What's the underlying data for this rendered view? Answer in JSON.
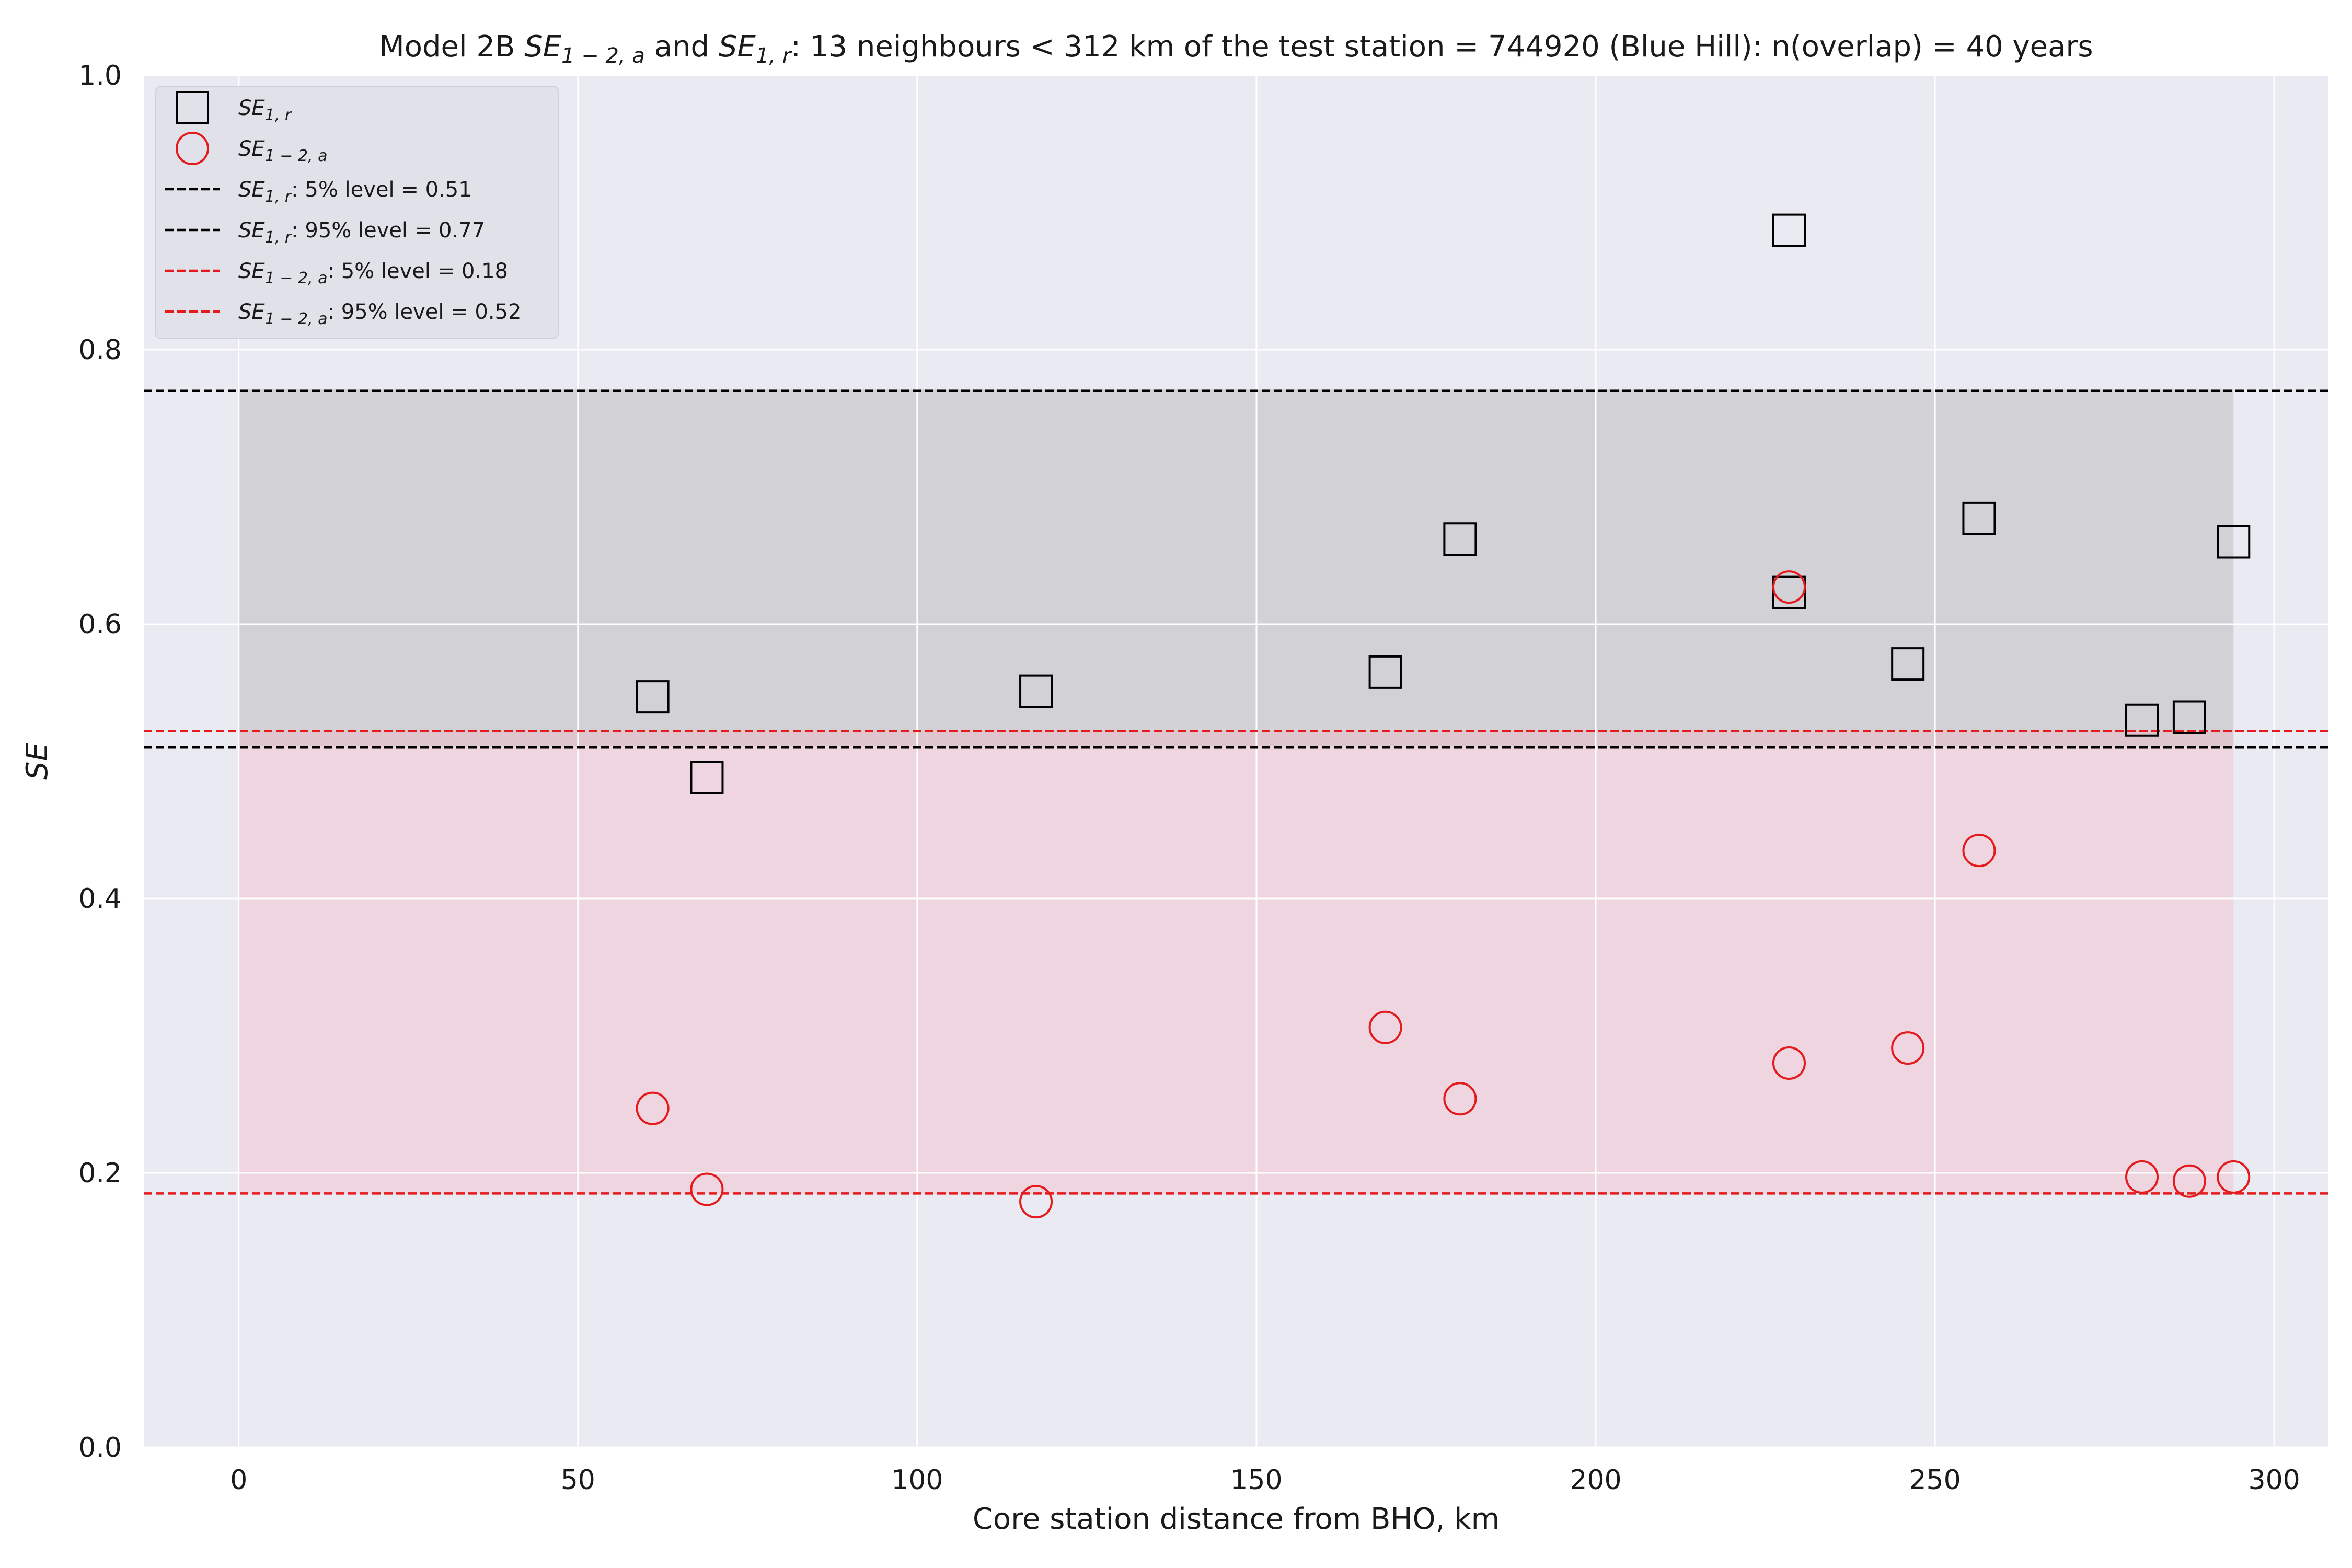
{
  "chart_data": {
    "type": "scatter",
    "title_parts": {
      "prefix": "Model 2B ",
      "se_a": "SE",
      "se_a_sub": "1 − 2, a",
      "middle": " and ",
      "se_r": "SE",
      "se_r_sub": "1, r",
      "suffix": ": 13 neighbours < 312 km of the test station = 744920 (Blue Hill): n(overlap) = 40 years"
    },
    "xlabel": "Core station distance from BHO, km",
    "ylabel": "SE",
    "xlim": [
      -14,
      308
    ],
    "ylim": [
      0.0,
      1.0
    ],
    "xticks": [
      0,
      50,
      100,
      150,
      200,
      250,
      300
    ],
    "yticks": [
      0.0,
      0.2,
      0.4,
      0.6,
      0.8,
      1.0
    ],
    "xtick_labels": [
      "0",
      "50",
      "100",
      "150",
      "200",
      "250",
      "300"
    ],
    "ytick_labels": [
      "0.0",
      "0.2",
      "0.4",
      "0.6",
      "0.8",
      "1.0"
    ],
    "grid": true,
    "legend_position": "top-left",
    "series": [
      {
        "name": "SE_{1,r}",
        "marker": "square",
        "color": "#000000",
        "x": [
          61,
          69,
          117.5,
          169,
          180,
          228.5,
          228.5,
          246,
          256.5,
          280.5,
          287.5,
          294
        ],
        "y": [
          0.547,
          0.488,
          0.551,
          0.565,
          0.662,
          0.887,
          0.623,
          0.571,
          0.677,
          0.53,
          0.532,
          0.66
        ]
      },
      {
        "name": "SE_{1-2,a}",
        "marker": "circle",
        "color": "#e41a1c",
        "x": [
          61,
          69,
          117.5,
          169,
          180,
          228.5,
          228.5,
          246,
          256.5,
          280.5,
          287.5,
          294
        ],
        "y": [
          0.247,
          0.188,
          0.179,
          0.306,
          0.254,
          0.627,
          0.28,
          0.291,
          0.435,
          0.197,
          0.194,
          0.197
        ]
      }
    ],
    "reference_lines": [
      {
        "series": "SE_{1,r}",
        "label": ": 5% level = 0.51",
        "value": 0.51,
        "color": "#000000"
      },
      {
        "series": "SE_{1,r}",
        "label": ": 95% level = 0.77",
        "value": 0.77,
        "color": "#000000"
      },
      {
        "series": "SE_{1-2,a}",
        "label": ": 5% level = 0.18",
        "value": 0.185,
        "color": "#e41a1c"
      },
      {
        "series": "SE_{1-2,a}",
        "label": ": 95% level = 0.52",
        "value": 0.522,
        "color": "#e41a1c"
      }
    ],
    "bands": [
      {
        "series": "SE_{1,r}",
        "x_range": [
          0,
          294
        ],
        "y_range": [
          0.511,
          0.771
        ],
        "color": "#b4b4b4"
      },
      {
        "series": "SE_{1-2,a}",
        "x_range": [
          0,
          294
        ],
        "y_range": [
          0.185,
          0.522
        ],
        "color": "#f4b6c2"
      }
    ],
    "colors": {
      "background": "#eaeaf2",
      "grid": "#ffffff",
      "black": "#000000",
      "red": "#e41a1c"
    }
  }
}
